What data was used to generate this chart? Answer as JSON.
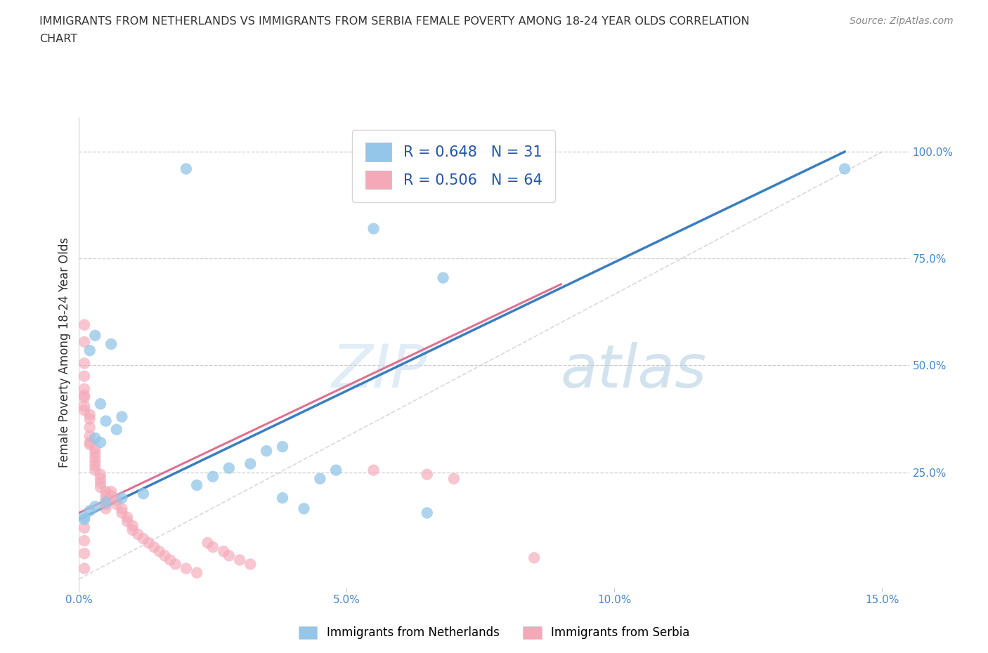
{
  "title_line1": "IMMIGRANTS FROM NETHERLANDS VS IMMIGRANTS FROM SERBIA FEMALE POVERTY AMONG 18-24 YEAR OLDS CORRELATION",
  "title_line2": "CHART",
  "source": "Source: ZipAtlas.com",
  "ylabel": "Female Poverty Among 18-24 Year Olds",
  "xlim": [
    0.0,
    0.155
  ],
  "ylim": [
    -0.02,
    1.08
  ],
  "xticks": [
    0.0,
    0.05,
    0.1,
    0.15
  ],
  "xtick_labels": [
    "0.0%",
    "5.0%",
    "10.0%",
    "15.0%"
  ],
  "yticks_right": [
    0.25,
    0.5,
    0.75,
    1.0
  ],
  "ytick_labels_right": [
    "25.0%",
    "50.0%",
    "75.0%",
    "100.0%"
  ],
  "color_netherlands": "#93c6e8",
  "color_serbia": "#f4a8b8",
  "color_blue_line": "#3a7ebf",
  "color_pink_line": "#e07090",
  "color_diag_line": "#d0d0d0",
  "R_netherlands": 0.648,
  "N_netherlands": 31,
  "R_serbia": 0.506,
  "N_serbia": 64,
  "nl_line_x": [
    0.0,
    0.143
  ],
  "nl_line_y": [
    0.14,
    1.0
  ],
  "sr_line_x": [
    0.0,
    0.09
  ],
  "sr_line_y": [
    0.155,
    0.69
  ],
  "nl_x": [
    0.02,
    0.143,
    0.055,
    0.003,
    0.006,
    0.002,
    0.004,
    0.008,
    0.005,
    0.007,
    0.003,
    0.004,
    0.038,
    0.035,
    0.032,
    0.028,
    0.025,
    0.022,
    0.012,
    0.008,
    0.005,
    0.003,
    0.002,
    0.001,
    0.001,
    0.048,
    0.045,
    0.038,
    0.042,
    0.065,
    0.068
  ],
  "nl_y": [
    0.96,
    0.96,
    0.82,
    0.57,
    0.55,
    0.535,
    0.41,
    0.38,
    0.37,
    0.35,
    0.33,
    0.32,
    0.31,
    0.3,
    0.27,
    0.26,
    0.24,
    0.22,
    0.2,
    0.19,
    0.18,
    0.17,
    0.16,
    0.145,
    0.14,
    0.255,
    0.235,
    0.19,
    0.165,
    0.155,
    0.705
  ],
  "sr_x": [
    0.001,
    0.001,
    0.001,
    0.001,
    0.001,
    0.001,
    0.001,
    0.001,
    0.001,
    0.002,
    0.002,
    0.002,
    0.002,
    0.002,
    0.002,
    0.003,
    0.003,
    0.003,
    0.003,
    0.003,
    0.003,
    0.004,
    0.004,
    0.004,
    0.004,
    0.005,
    0.005,
    0.005,
    0.005,
    0.005,
    0.006,
    0.006,
    0.007,
    0.007,
    0.008,
    0.008,
    0.009,
    0.009,
    0.01,
    0.01,
    0.011,
    0.012,
    0.013,
    0.014,
    0.015,
    0.016,
    0.017,
    0.018,
    0.02,
    0.022,
    0.024,
    0.025,
    0.027,
    0.028,
    0.03,
    0.032,
    0.001,
    0.001,
    0.001,
    0.055,
    0.065,
    0.07,
    0.085,
    0.001
  ],
  "sr_y": [
    0.595,
    0.555,
    0.505,
    0.475,
    0.445,
    0.43,
    0.425,
    0.405,
    0.395,
    0.385,
    0.375,
    0.355,
    0.335,
    0.32,
    0.315,
    0.305,
    0.295,
    0.285,
    0.275,
    0.265,
    0.255,
    0.245,
    0.235,
    0.225,
    0.215,
    0.205,
    0.195,
    0.185,
    0.175,
    0.165,
    0.205,
    0.195,
    0.185,
    0.175,
    0.165,
    0.155,
    0.145,
    0.135,
    0.125,
    0.115,
    0.105,
    0.095,
    0.085,
    0.075,
    0.065,
    0.055,
    0.045,
    0.035,
    0.025,
    0.015,
    0.085,
    0.075,
    0.065,
    0.055,
    0.045,
    0.035,
    0.12,
    0.09,
    0.06,
    0.255,
    0.245,
    0.235,
    0.05,
    0.025
  ]
}
